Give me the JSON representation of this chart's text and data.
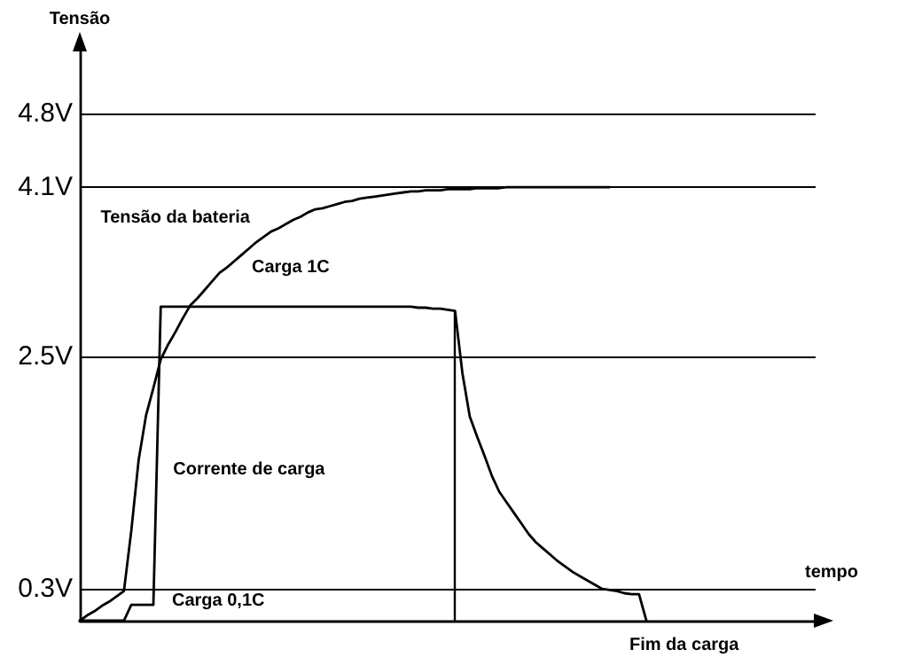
{
  "chart_data": {
    "type": "line",
    "xlabel": "tempo",
    "ylabel": "Tensão",
    "categories": [
      null,
      null,
      null,
      null,
      null,
      null,
      null,
      null,
      null,
      null,
      null,
      null,
      null,
      null,
      null,
      null,
      null,
      null,
      null,
      null,
      null,
      null,
      null,
      null,
      null,
      null,
      null,
      null,
      null,
      null,
      null,
      null,
      null,
      null,
      null,
      null,
      null,
      null,
      null,
      null,
      null,
      null,
      null,
      null,
      null,
      null,
      null,
      null,
      null,
      null,
      null,
      null,
      null,
      null,
      null,
      null,
      null,
      null,
      null,
      null,
      null,
      null,
      null,
      null,
      null,
      null,
      null,
      null,
      null,
      null,
      null,
      null,
      null,
      null,
      null,
      null,
      null,
      null,
      null,
      null,
      null,
      null,
      null,
      null,
      null,
      null,
      null,
      null,
      null,
      null,
      null,
      null,
      null,
      null,
      null,
      null,
      null,
      null,
      null,
      null,
      null
    ],
    "ylim": [
      0,
      5.4
    ],
    "yticks": [
      {
        "value": 0.3,
        "label": "0.3V"
      },
      {
        "value": 2.5,
        "label": "2.5V"
      },
      {
        "value": 4.1,
        "label": "4.1V"
      },
      {
        "value": 4.8,
        "label": "4.8V"
      }
    ],
    "tick_labels": "y",
    "grid": "y",
    "legend": false,
    "marker": "none",
    "line_style": "solid",
    "series": [
      {
        "name": "Tensão da bateria",
        "color": "#000000",
        "values": [
          0,
          0.05,
          0.09,
          0.14,
          0.18,
          0.23,
          0.28,
          0.85,
          1.52,
          1.94,
          2.2,
          2.47,
          2.61,
          2.73,
          2.86,
          2.98,
          3.05,
          3.13,
          3.21,
          3.29,
          3.34,
          3.4,
          3.46,
          3.52,
          3.58,
          3.63,
          3.68,
          3.71,
          3.75,
          3.79,
          3.82,
          3.86,
          3.89,
          3.9,
          3.92,
          3.94,
          3.96,
          3.97,
          3.99,
          4.0,
          4.01,
          4.02,
          4.03,
          4.04,
          4.05,
          4.06,
          4.06,
          4.07,
          4.07,
          4.07,
          4.08,
          4.08,
          4.08,
          4.08,
          4.09,
          4.09,
          4.09,
          4.09,
          4.1,
          4.1,
          4.1,
          4.1,
          4.1,
          4.1,
          4.1,
          4.1,
          4.1,
          4.1,
          4.1,
          4.1,
          4.1,
          4.1,
          4.1,
          null,
          null,
          null,
          null,
          null,
          null,
          null,
          null,
          null,
          null,
          null,
          null,
          null,
          null,
          null,
          null,
          null,
          null,
          null,
          null,
          null,
          null,
          null,
          null,
          null,
          null,
          null,
          null
        ]
      },
      {
        "name": "Corrente de carga",
        "color": "#000000",
        "values": [
          0,
          0,
          0,
          0,
          0,
          0,
          0,
          0.15,
          0.15,
          0.15,
          0.15,
          2.97,
          2.97,
          2.97,
          2.97,
          2.97,
          2.97,
          2.97,
          2.97,
          2.97,
          2.97,
          2.97,
          2.97,
          2.97,
          2.97,
          2.97,
          2.97,
          2.97,
          2.97,
          2.97,
          2.97,
          2.97,
          2.97,
          2.97,
          2.97,
          2.97,
          2.97,
          2.97,
          2.97,
          2.97,
          2.97,
          2.97,
          2.97,
          2.97,
          2.97,
          2.97,
          2.96,
          2.96,
          2.95,
          2.95,
          2.94,
          2.93,
          2.34,
          1.93,
          1.74,
          1.56,
          1.37,
          1.22,
          1.12,
          1.02,
          0.92,
          0.82,
          0.74,
          0.68,
          0.62,
          0.56,
          0.51,
          0.46,
          0.42,
          0.38,
          0.34,
          0.3,
          0.29,
          0.28,
          0.26,
          0.25,
          0.25,
          0,
          null,
          null,
          null,
          null,
          null,
          null,
          null,
          null,
          null,
          null,
          null,
          null,
          null,
          null,
          null,
          null,
          null,
          null,
          null,
          null,
          null,
          null,
          null
        ]
      }
    ],
    "annotations": [
      "Carga 1C",
      "Carga 0,1C",
      "Fim da carga"
    ]
  }
}
